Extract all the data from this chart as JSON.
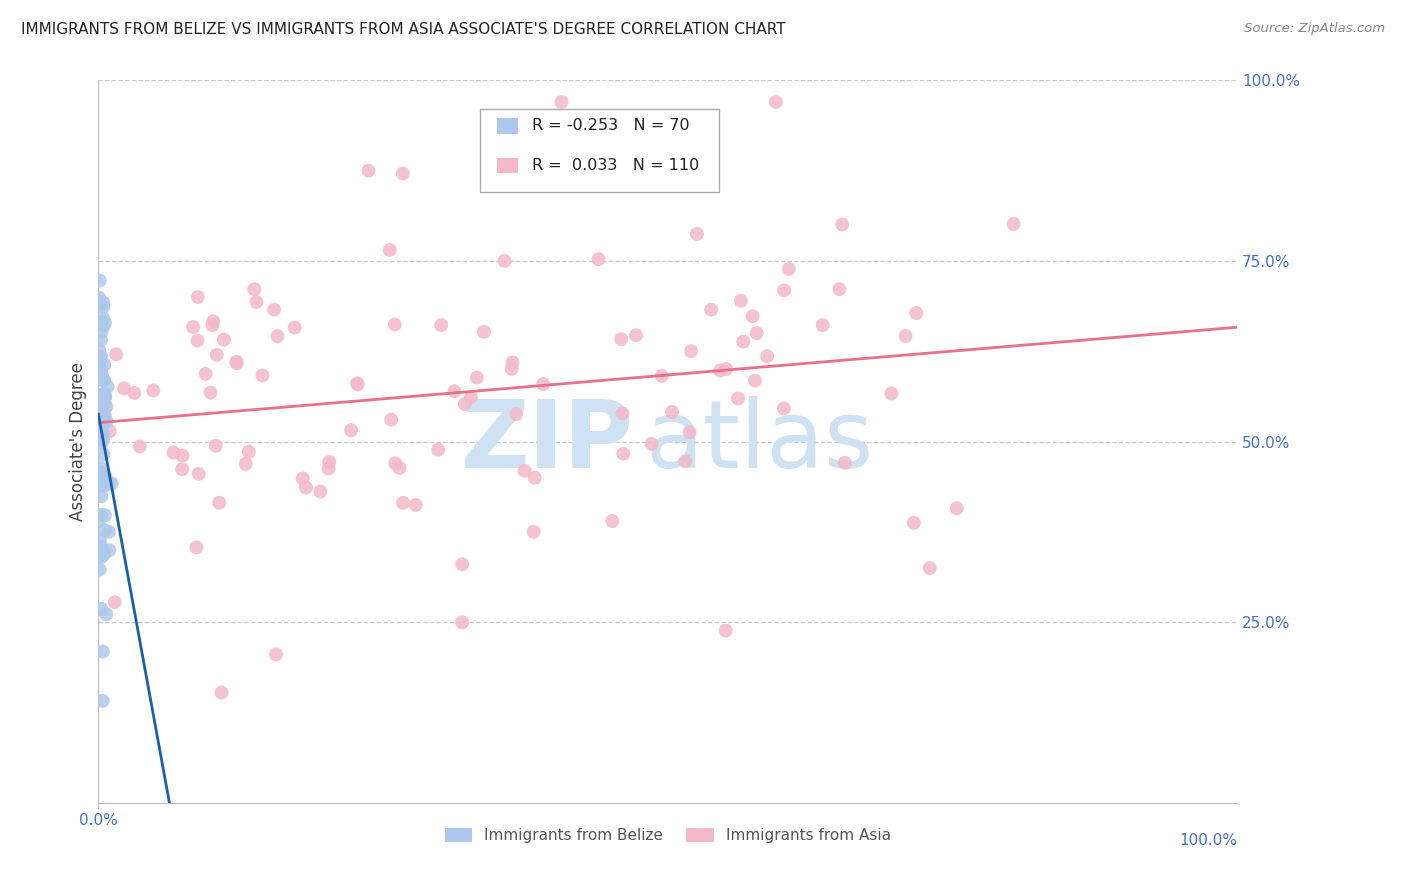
{
  "title": "IMMIGRANTS FROM BELIZE VS IMMIGRANTS FROM ASIA ASSOCIATE'S DEGREE CORRELATION CHART",
  "source": "Source: ZipAtlas.com",
  "ylabel": "Associate's Degree",
  "right_yticks": [
    "100.0%",
    "75.0%",
    "50.0%",
    "25.0%"
  ],
  "right_ytick_vals": [
    1.0,
    0.75,
    0.5,
    0.25
  ],
  "xlim": [
    0.0,
    1.0
  ],
  "ylim": [
    0.0,
    1.0
  ],
  "legend_r_belize": "-0.253",
  "legend_n_belize": "70",
  "legend_r_asia": "0.033",
  "legend_n_asia": "110",
  "belize_color": "#adc8eb",
  "asia_color": "#f4b8c8",
  "belize_line_color": "#1a5fa8",
  "asia_line_color": "#e8708a",
  "background_color": "#ffffff",
  "grid_color": "#cccccc",
  "title_color": "#222222",
  "axis_label_color": "#4472c4",
  "watermark_zip": "ZIP",
  "watermark_atlas": "atlas",
  "watermark_color": "#cfe2f3"
}
